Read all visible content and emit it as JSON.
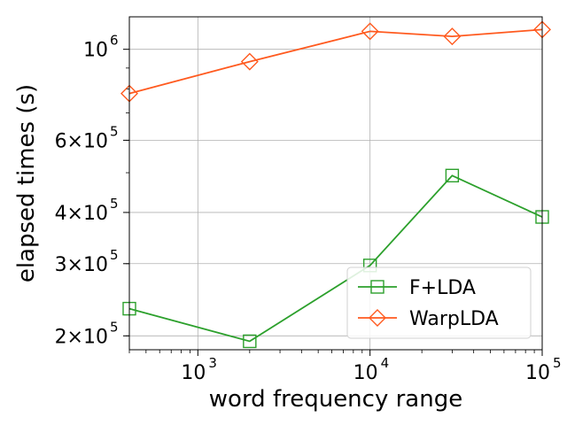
{
  "chart_data": {
    "type": "line",
    "xlabel": "word frequency range",
    "ylabel": "elapsed times (s)",
    "xscale": "log",
    "yscale": "log",
    "xlim": [
      400,
      100000
    ],
    "ylim": [
      185000,
      1200000
    ],
    "grid": true,
    "legend_position": "lower-right",
    "x": [
      400,
      2000,
      10000,
      30000,
      100000
    ],
    "series": [
      {
        "name": "F+LDA",
        "color": "#2ca02c",
        "marker": "square",
        "values": [
          233000,
          194000,
          297000,
          492000,
          390000
        ]
      },
      {
        "name": "WarpLDA",
        "color": "#ff5a1f",
        "marker": "diamond",
        "values": [
          780000,
          933000,
          1106000,
          1075000,
          1117000
        ]
      }
    ],
    "xticks": [
      {
        "value": 1000,
        "base": "10",
        "exp": "3"
      },
      {
        "value": 10000,
        "base": "10",
        "exp": "4"
      },
      {
        "value": 100000,
        "base": "10",
        "exp": "5"
      }
    ],
    "yticks": [
      {
        "value": 200000,
        "mant": "2×",
        "base": "10",
        "exp": "5"
      },
      {
        "value": 300000,
        "mant": "3×",
        "base": "10",
        "exp": "5"
      },
      {
        "value": 400000,
        "mant": "4×",
        "base": "10",
        "exp": "5"
      },
      {
        "value": 600000,
        "mant": "6×",
        "base": "10",
        "exp": "5"
      },
      {
        "value": 1000000,
        "mant": "",
        "base": "10",
        "exp": "6"
      }
    ]
  }
}
